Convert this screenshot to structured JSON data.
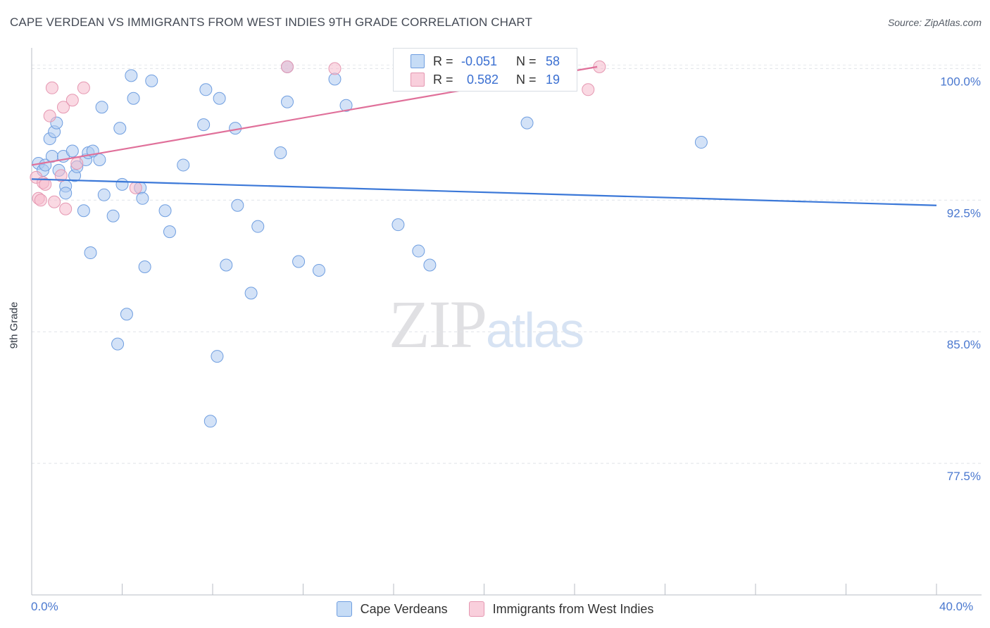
{
  "header": {
    "title": "CAPE VERDEAN VS IMMIGRANTS FROM WEST INDIES 9TH GRADE CORRELATION CHART",
    "source": "Source: ZipAtlas.com"
  },
  "watermark": {
    "zip": "ZIP",
    "atlas": "atlas"
  },
  "stats": {
    "rows": [
      {
        "r_label": "R =",
        "r_value": "-0.051",
        "n_label": "N =",
        "n_value": "58",
        "color": "#aecbf0"
      },
      {
        "r_label": "R =",
        "r_value": "0.582",
        "n_label": "N =",
        "n_value": "19",
        "color": "#f6b9cc"
      }
    ]
  },
  "legend": {
    "items": [
      {
        "label": "Cape Verdeans",
        "color": "#aecbf0"
      },
      {
        "label": "Immigrants from West Indies",
        "color": "#f6b9cc"
      }
    ]
  },
  "x_axis": {
    "min_label": "0.0%",
    "max_label": "40.0%"
  },
  "chart_data": {
    "type": "scatter",
    "title": "CAPE VERDEAN VS IMMIGRANTS FROM WEST INDIES 9TH GRADE CORRELATION CHART",
    "xlabel": "",
    "ylabel": "9th Grade",
    "xlim": [
      0,
      40
    ],
    "ylim": [
      70,
      101.5
    ],
    "y_ticks": [
      77.5,
      85.0,
      92.5,
      100.0
    ],
    "y_tick_labels": [
      "77.5%",
      "85.0%",
      "92.5%",
      "100.0%"
    ],
    "x_minor_ticks": [
      4,
      8,
      12,
      16,
      20,
      24,
      28,
      32,
      36,
      40
    ],
    "colors": {
      "blue": "#3b78d8",
      "pink": "#e0709a",
      "blue_fill": "#aecbf0",
      "pink_fill": "#f6b9cc"
    },
    "series": [
      {
        "name": "Cape Verdeans",
        "color": "#aecbf0",
        "stroke": "#6f9ee0",
        "trend": {
          "x": [
            0,
            40
          ],
          "y": [
            93.7,
            92.2
          ],
          "color": "#3b78d8"
        },
        "points": [
          [
            0.3,
            94.6
          ],
          [
            0.5,
            94.2
          ],
          [
            0.6,
            94.5
          ],
          [
            0.8,
            96.0
          ],
          [
            1.0,
            96.4
          ],
          [
            0.9,
            95.0
          ],
          [
            1.1,
            96.9
          ],
          [
            1.2,
            94.2
          ],
          [
            1.4,
            95.0
          ],
          [
            1.5,
            93.3
          ],
          [
            1.5,
            92.9
          ],
          [
            1.8,
            95.3
          ],
          [
            1.9,
            93.9
          ],
          [
            2.0,
            94.4
          ],
          [
            2.3,
            91.9
          ],
          [
            2.4,
            94.8
          ],
          [
            2.5,
            95.2
          ],
          [
            2.7,
            95.3
          ],
          [
            2.6,
            89.5
          ],
          [
            3.0,
            94.8
          ],
          [
            3.1,
            97.8
          ],
          [
            3.2,
            92.8
          ],
          [
            3.6,
            91.6
          ],
          [
            3.8,
            84.3
          ],
          [
            3.9,
            96.6
          ],
          [
            4.0,
            93.4
          ],
          [
            4.2,
            86.0
          ],
          [
            4.4,
            99.6
          ],
          [
            4.5,
            98.3
          ],
          [
            4.8,
            93.2
          ],
          [
            4.9,
            92.6
          ],
          [
            5.0,
            88.7
          ],
          [
            5.3,
            99.3
          ],
          [
            5.9,
            91.9
          ],
          [
            6.1,
            90.7
          ],
          [
            6.7,
            94.5
          ],
          [
            7.6,
            96.8
          ],
          [
            7.7,
            98.8
          ],
          [
            7.9,
            79.9
          ],
          [
            8.2,
            83.6
          ],
          [
            8.3,
            98.3
          ],
          [
            8.6,
            88.8
          ],
          [
            9.0,
            96.6
          ],
          [
            9.1,
            92.2
          ],
          [
            9.7,
            87.2
          ],
          [
            10.0,
            91.0
          ],
          [
            11.0,
            95.2
          ],
          [
            11.3,
            100.1
          ],
          [
            11.3,
            98.1
          ],
          [
            11.8,
            89.0
          ],
          [
            12.7,
            88.5
          ],
          [
            13.4,
            99.4
          ],
          [
            13.9,
            97.9
          ],
          [
            16.2,
            91.1
          ],
          [
            17.1,
            89.6
          ],
          [
            17.6,
            88.8
          ],
          [
            21.9,
            96.9
          ],
          [
            29.6,
            95.8
          ]
        ]
      },
      {
        "name": "Immigrants from West Indies",
        "color": "#f6b9cc",
        "stroke": "#e597b1",
        "trend": {
          "x": [
            0,
            25.0
          ],
          "y": [
            94.5,
            100.1
          ],
          "color": "#e0709a"
        },
        "points": [
          [
            0.2,
            93.8
          ],
          [
            0.3,
            92.6
          ],
          [
            0.4,
            92.5
          ],
          [
            0.5,
            93.5
          ],
          [
            0.6,
            93.4
          ],
          [
            0.8,
            97.3
          ],
          [
            0.9,
            98.9
          ],
          [
            1.0,
            92.4
          ],
          [
            1.3,
            93.9
          ],
          [
            1.4,
            97.8
          ],
          [
            1.5,
            92.0
          ],
          [
            1.8,
            98.2
          ],
          [
            2.0,
            94.6
          ],
          [
            2.3,
            98.9
          ],
          [
            4.6,
            93.2
          ],
          [
            11.3,
            100.1
          ],
          [
            13.4,
            100.0
          ],
          [
            24.6,
            98.8
          ],
          [
            25.1,
            100.1
          ]
        ]
      }
    ]
  }
}
